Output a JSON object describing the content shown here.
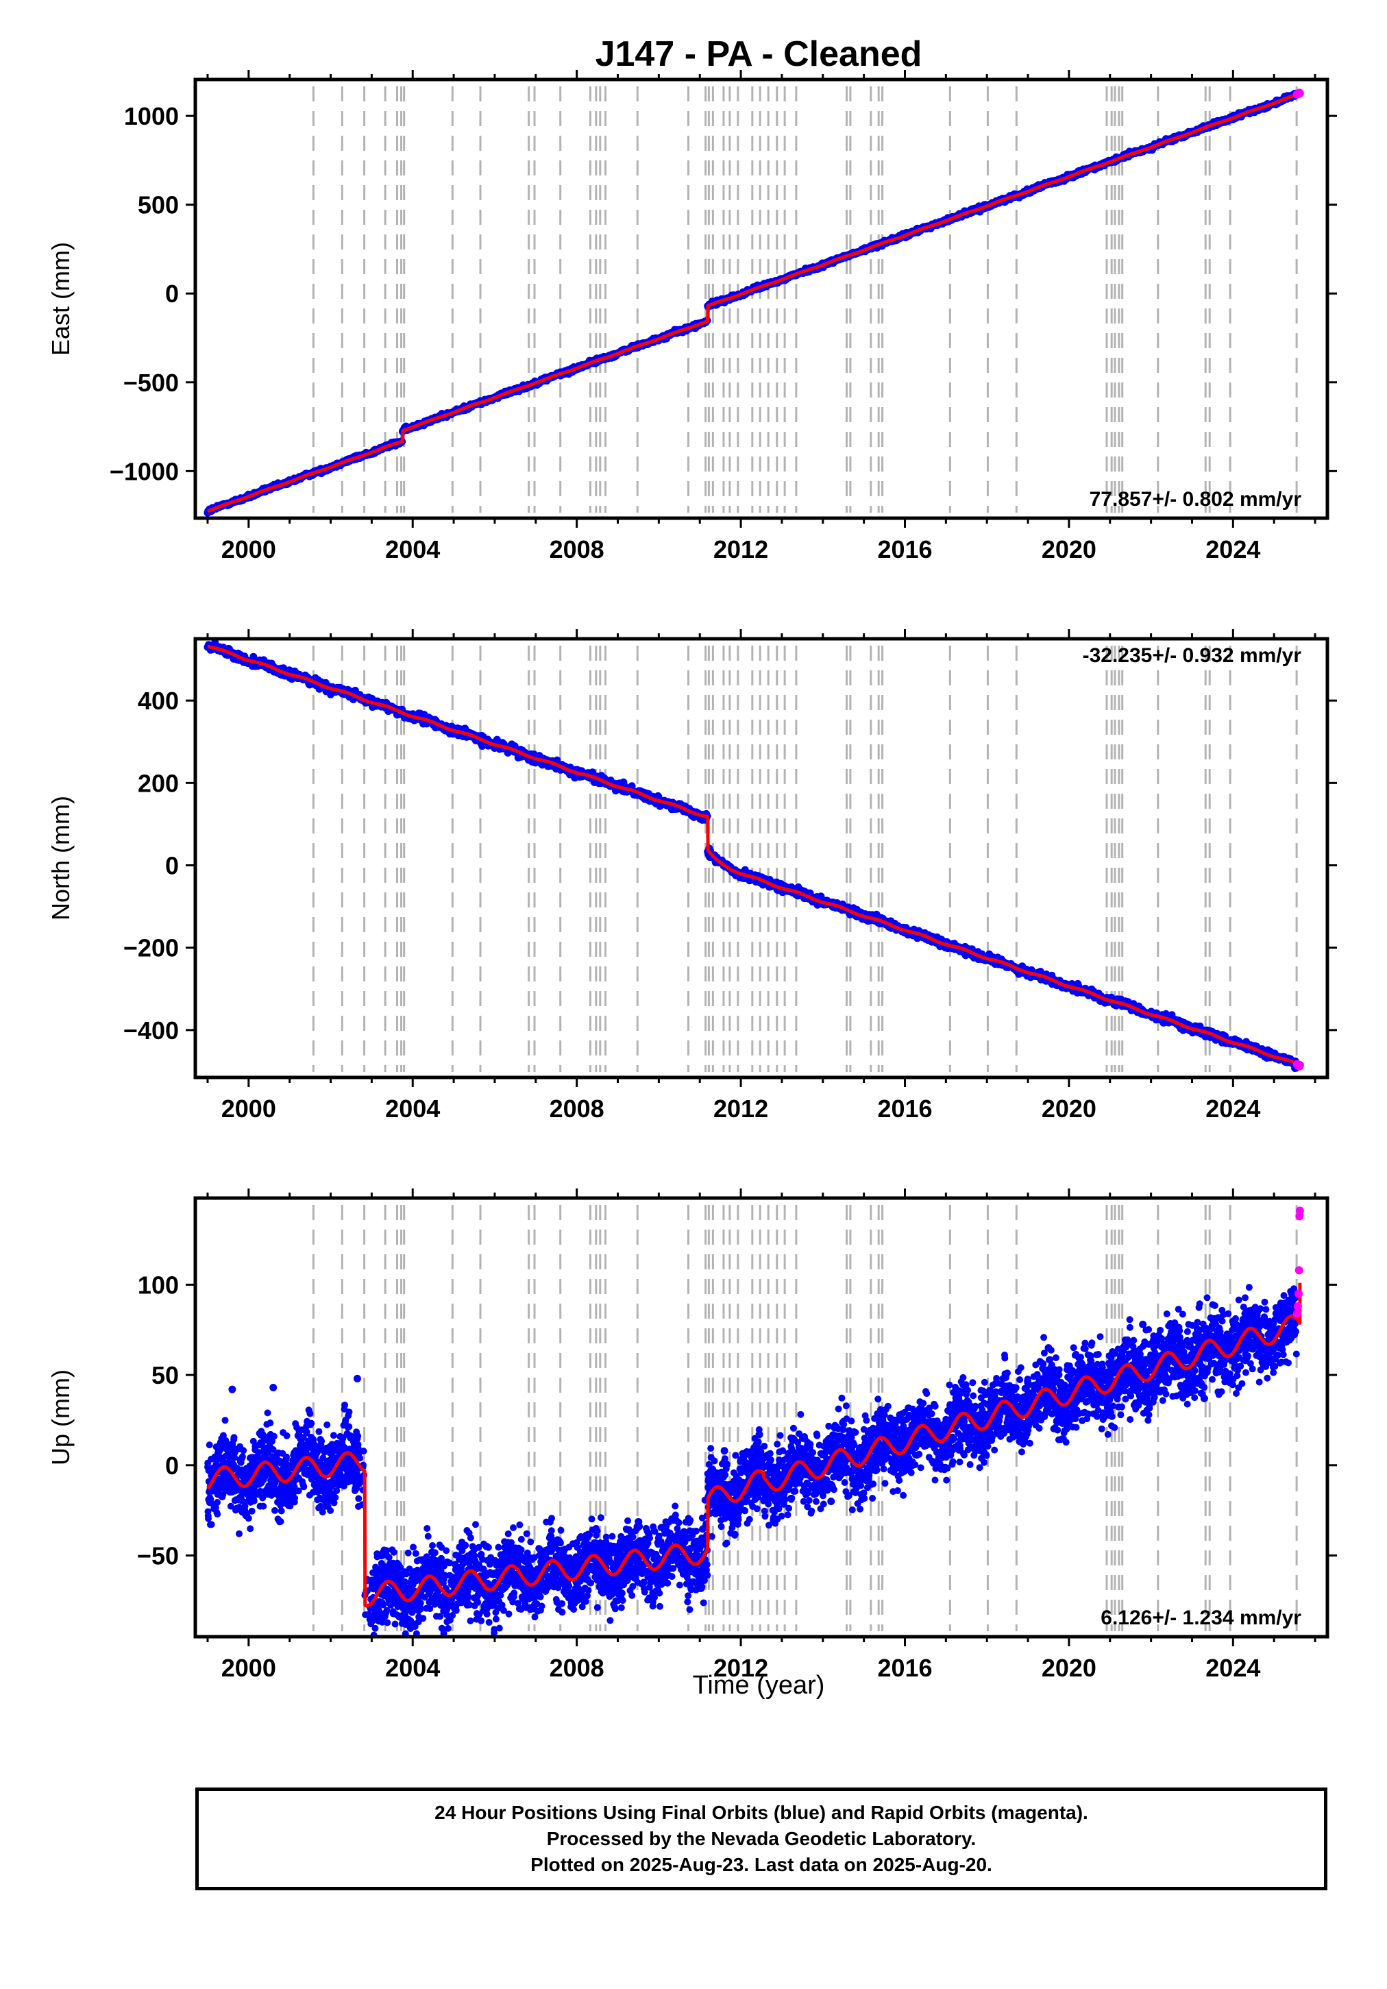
{
  "title": "J147  - PA - Cleaned",
  "xlabel": "Time (year)",
  "colors": {
    "final_orbits": "#0000ff",
    "rapid_orbits": "#ff00ff",
    "model_fit": "#ff0000",
    "equipment_change_lines": "#b3b3b3"
  },
  "footer": {
    "line1": "24 Hour Positions Using Final Orbits (blue) and Rapid Orbits (magenta).",
    "line2": "Processed by the Nevada Geodetic Laboratory.",
    "line3": "Plotted on 2025-Aug-23. Last data on 2025-Aug-20."
  },
  "chart_data": [
    {
      "type": "scatter",
      "component": "East",
      "ylabel": "East (mm)",
      "rate_label": "77.857+/- 0.802 mm/yr",
      "rate_label_position": "bottom-right",
      "xlim": [
        1998.7,
        2026.3
      ],
      "ylim": [
        -1265,
        1205
      ],
      "xticks": [
        2000,
        2004,
        2008,
        2012,
        2016,
        2020,
        2024
      ],
      "yticks": [
        -1000,
        -500,
        0,
        500,
        1000
      ],
      "yticklabels": [
        "−1000",
        "−500",
        "0",
        "500",
        "1000"
      ],
      "trend": {
        "start_year": 1999.0,
        "start_value": -1225,
        "end_year": 2025.63,
        "end_value": 1125
      },
      "offsets": [
        {
          "year": 2003.75,
          "value": 60
        },
        {
          "year": 2011.19,
          "value": 85
        }
      ],
      "seasonal_amplitude": 2,
      "scatter_spread": 6,
      "rapid_points": [
        [
          2025.56,
          1121
        ],
        [
          2025.58,
          1126
        ],
        [
          2025.6,
          1124
        ],
        [
          2025.62,
          1130
        ],
        [
          2025.63,
          1127
        ]
      ]
    },
    {
      "type": "scatter",
      "component": "North",
      "ylabel": "North (mm)",
      "rate_label": "-32.235+/- 0.932 mm/yr",
      "rate_label_position": "top-right",
      "xlim": [
        1998.7,
        2026.3
      ],
      "ylim": [
        -515,
        550
      ],
      "xticks": [
        2000,
        2004,
        2008,
        2012,
        2016,
        2020,
        2024
      ],
      "yticks": [
        -400,
        -200,
        0,
        200,
        400
      ],
      "yticklabels": [
        "−400",
        "−200",
        "0",
        "200",
        "400"
      ],
      "trend": {
        "start_year": 1999.0,
        "start_value": 533,
        "end_year": 2025.63,
        "end_value": -485
      },
      "offsets": [
        {
          "year": 2011.19,
          "value": -110
        }
      ],
      "postseismic": {
        "year": 2011.19,
        "amplitude": 30,
        "tau": 0.25
      },
      "seasonal_amplitude": 2,
      "scatter_spread": 5,
      "rapid_points": [
        [
          2025.56,
          -483
        ],
        [
          2025.58,
          -486
        ],
        [
          2025.6,
          -484
        ],
        [
          2025.62,
          -488
        ],
        [
          2025.63,
          -485
        ]
      ]
    },
    {
      "type": "scatter",
      "component": "Up",
      "ylabel": "Up (mm)",
      "rate_label": "6.126+/- 1.234 mm/yr",
      "rate_label_position": "bottom-right",
      "xlim": [
        1998.7,
        2026.3
      ],
      "ylim": [
        -95,
        148
      ],
      "xticks": [
        2000,
        2004,
        2008,
        2012,
        2016,
        2020,
        2024
      ],
      "yticks": [
        -50,
        0,
        50,
        100
      ],
      "yticklabels": [
        "−50",
        "0",
        "50",
        "100"
      ],
      "segments": [
        {
          "start": 1999.0,
          "end": 2002.83,
          "v0": -8,
          "v1": 2
        },
        {
          "start": 2002.83,
          "end": 2011.19,
          "v0": -72,
          "v1": -48
        },
        {
          "start": 2011.19,
          "end": 2012.55,
          "v0": -20,
          "v1": -8
        },
        {
          "start": 2012.55,
          "end": 2025.63,
          "v0": -10,
          "v1": 78
        }
      ],
      "seasonal_amplitude": 6,
      "scatter_spread": 10,
      "outliers": [
        [
          1999.6,
          42
        ],
        [
          2000.6,
          43
        ],
        [
          2002.65,
          48
        ],
        [
          2011.6,
          8
        ],
        [
          2012.45,
          17
        ],
        [
          2019.5,
          65
        ],
        [
          2021.8,
          78
        ],
        [
          2023.3,
          37
        ],
        [
          2014.2,
          -20
        ],
        [
          2005.8,
          -45
        ]
      ],
      "rapid_points": [
        [
          2025.56,
          84
        ],
        [
          2025.58,
          88
        ],
        [
          2025.6,
          95
        ],
        [
          2025.61,
          108
        ],
        [
          2025.62,
          138
        ],
        [
          2025.63,
          141
        ]
      ],
      "fit_end_spike": [
        2025.63,
        101
      ]
    }
  ],
  "equipment_change_years": [
    2001.58,
    2002.28,
    2002.82,
    2003.33,
    2003.62,
    2003.72,
    2003.79,
    2004.97,
    2005.65,
    2006.83,
    2006.97,
    2007.6,
    2008.33,
    2008.47,
    2008.57,
    2008.7,
    2009.48,
    2010.72,
    2011.14,
    2011.22,
    2011.32,
    2011.58,
    2011.73,
    2011.93,
    2012.28,
    2012.47,
    2012.67,
    2012.88,
    2013.07,
    2013.35,
    2014.58,
    2014.67,
    2015.17,
    2015.36,
    2015.45,
    2017.1,
    2018.02,
    2018.72,
    2020.92,
    2021.04,
    2021.12,
    2021.22,
    2021.3,
    2022.17,
    2023.33,
    2023.43,
    2023.93,
    2025.55
  ]
}
